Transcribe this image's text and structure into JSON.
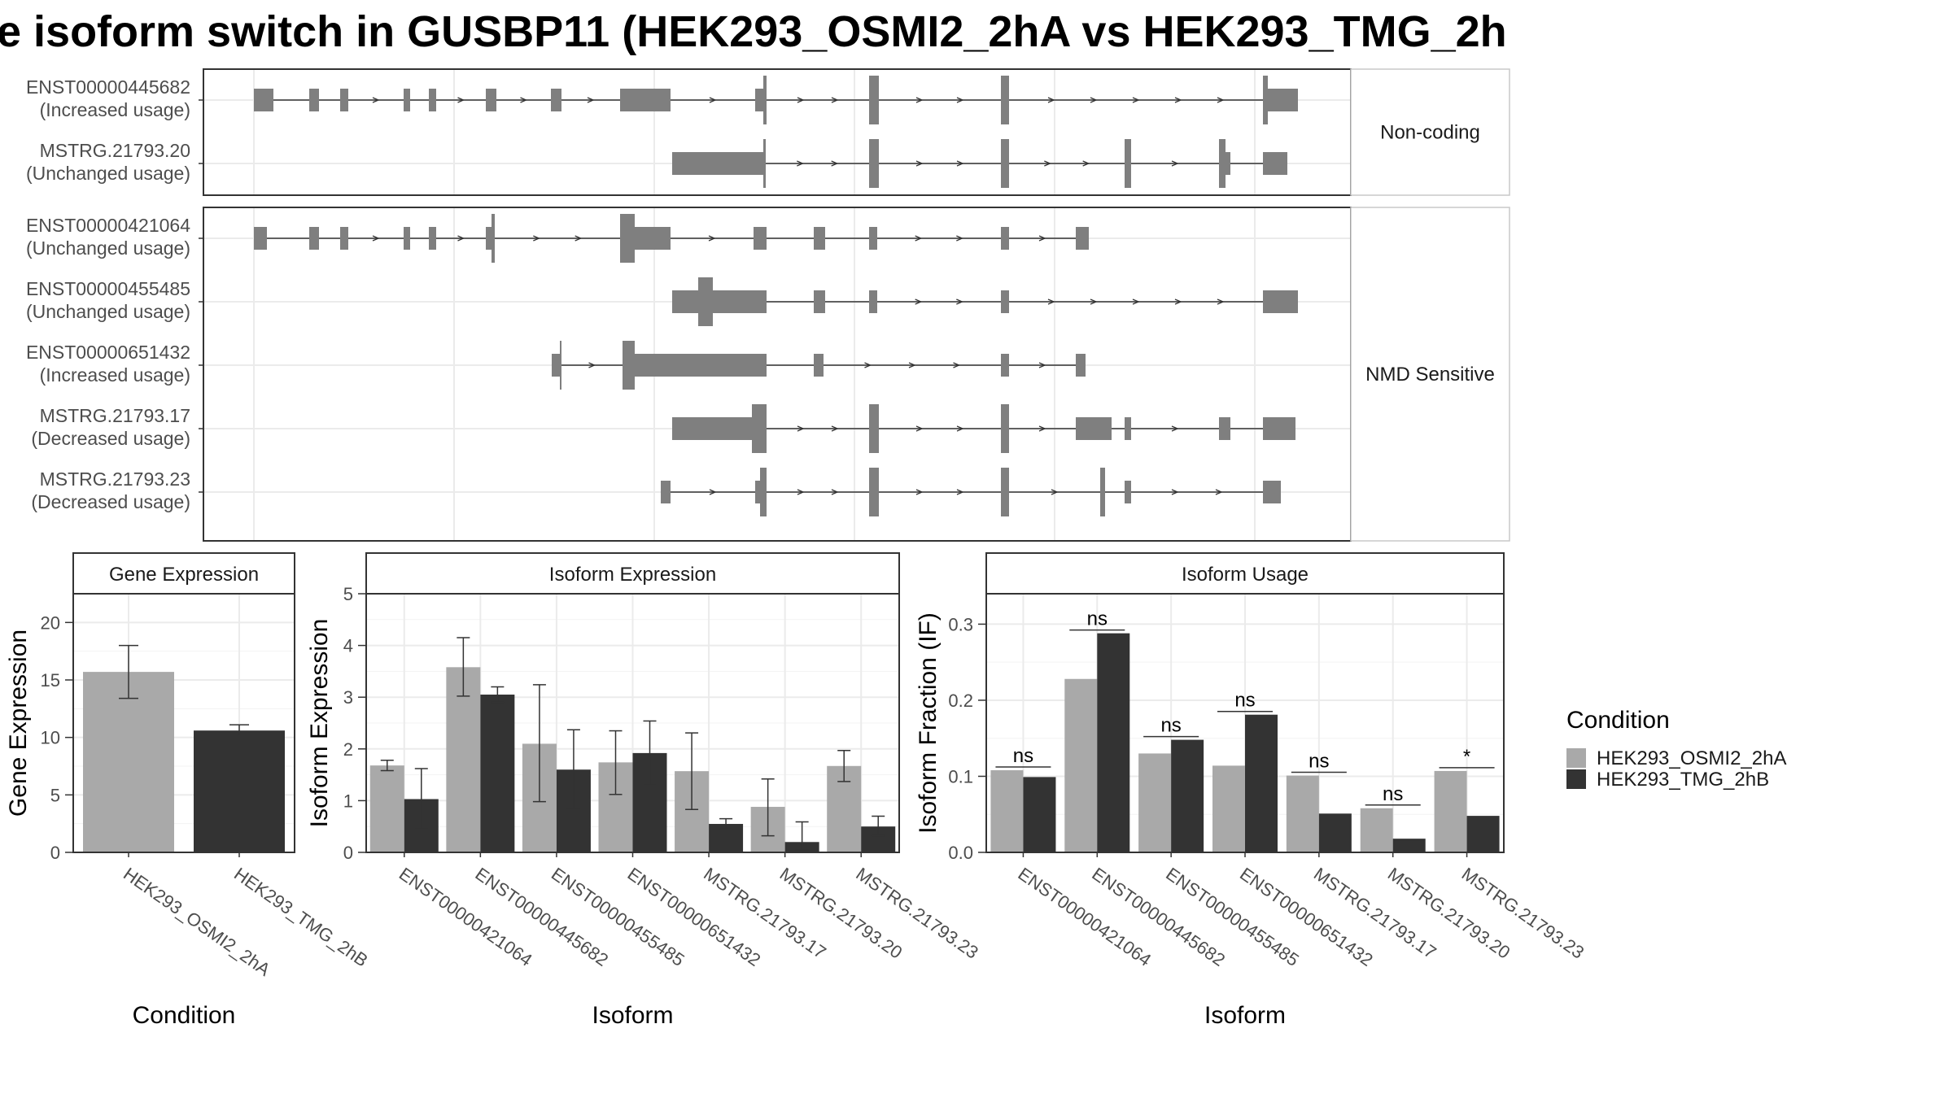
{
  "title": "e isoform switch in GUSBP11 (HEK293_OSMI2_2hA vs HEK293_TMG_2h",
  "colors": {
    "cond_a": "#a9a9a9",
    "cond_b": "#333333",
    "exon": "#7f7f7f",
    "panel_border": "#333333",
    "strip_fill": "#ffffff",
    "grid": "#ebebeb"
  },
  "chart_data": [
    {
      "type": "gene-structure",
      "groups": [
        {
          "label": "Non-coding",
          "tracks": [
            {
              "name": "ENST00000445682",
              "usage": "(Increased usage)"
            },
            {
              "name": "MSTRG.21793.20",
              "usage": "(Unchanged usage)"
            }
          ]
        },
        {
          "label": "NMD Sensitive",
          "tracks": [
            {
              "name": "ENST00000421064",
              "usage": "(Unchanged usage)"
            },
            {
              "name": "ENST00000455485",
              "usage": "(Unchanged usage)"
            },
            {
              "name": "ENST00000651432",
              "usage": "(Increased usage)"
            },
            {
              "name": "MSTRG.21793.17",
              "usage": "(Decreased usage)"
            },
            {
              "name": "MSTRG.21793.23",
              "usage": "(Decreased usage)"
            }
          ]
        }
      ]
    },
    {
      "type": "bar",
      "title": "Gene Expression",
      "xlabel": "Condition",
      "ylabel": "Gene Expression",
      "ylim": [
        0,
        22.5
      ],
      "yticks": [
        0,
        5,
        10,
        15,
        20
      ],
      "categories": [
        "HEK293_OSMI2_2hA",
        "HEK293_TMG_2hB"
      ],
      "values": [
        15.7,
        10.6
      ],
      "error_low": [
        13.4,
        10.1
      ],
      "error_high": [
        18.0,
        11.1
      ]
    },
    {
      "type": "bar",
      "title": "Isoform Expression",
      "xlabel": "Isoform",
      "ylabel": "Isoform Expression",
      "ylim": [
        0,
        5
      ],
      "yticks": [
        0,
        1,
        2,
        3,
        4,
        5
      ],
      "categories": [
        "ENST00000421064",
        "ENST00000445682",
        "ENST00000455485",
        "ENST00000651432",
        "MSTRG.21793.17",
        "MSTRG.21793.20",
        "MSTRG.21793.23"
      ],
      "series": [
        {
          "name": "HEK293_OSMI2_2hA",
          "values": [
            1.68,
            3.58,
            2.1,
            1.74,
            1.57,
            0.88,
            1.67
          ],
          "error_low": [
            1.58,
            3.02,
            0.98,
            1.12,
            0.83,
            0.32,
            1.37
          ],
          "error_high": [
            1.78,
            4.15,
            3.24,
            2.35,
            2.31,
            1.42,
            1.97
          ]
        },
        {
          "name": "HEK293_TMG_2hB",
          "values": [
            1.03,
            3.05,
            1.6,
            1.92,
            0.55,
            0.2,
            0.5
          ],
          "error_low": [
            0.45,
            2.9,
            0.85,
            1.3,
            0.45,
            0.05,
            0.32
          ],
          "error_high": [
            1.62,
            3.2,
            2.37,
            2.54,
            0.65,
            0.59,
            0.7
          ]
        }
      ]
    },
    {
      "type": "bar",
      "title": "Isoform Usage",
      "xlabel": "Isoform",
      "ylabel": "Isoform Fraction (IF)",
      "ylim": [
        0,
        0.34
      ],
      "yticks": [
        0.0,
        0.1,
        0.2,
        0.3
      ],
      "ytick_labels": [
        "0.0",
        "0.1",
        "0.2",
        "0.3"
      ],
      "categories": [
        "ENST00000421064",
        "ENST00000445682",
        "ENST00000455485",
        "ENST00000651432",
        "MSTRG.21793.17",
        "MSTRG.21793.20",
        "MSTRG.21793.23"
      ],
      "series": [
        {
          "name": "HEK293_OSMI2_2hA",
          "values": [
            0.108,
            0.228,
            0.13,
            0.114,
            0.101,
            0.058,
            0.107
          ]
        },
        {
          "name": "HEK293_TMG_2hB",
          "values": [
            0.099,
            0.288,
            0.148,
            0.181,
            0.051,
            0.018,
            0.048
          ]
        }
      ],
      "significance": [
        "ns",
        "ns",
        "ns",
        "ns",
        "ns",
        "ns",
        "*"
      ]
    }
  ],
  "legend": {
    "title": "Condition",
    "items": [
      "HEK293_OSMI2_2hA",
      "HEK293_TMG_2hB"
    ]
  }
}
